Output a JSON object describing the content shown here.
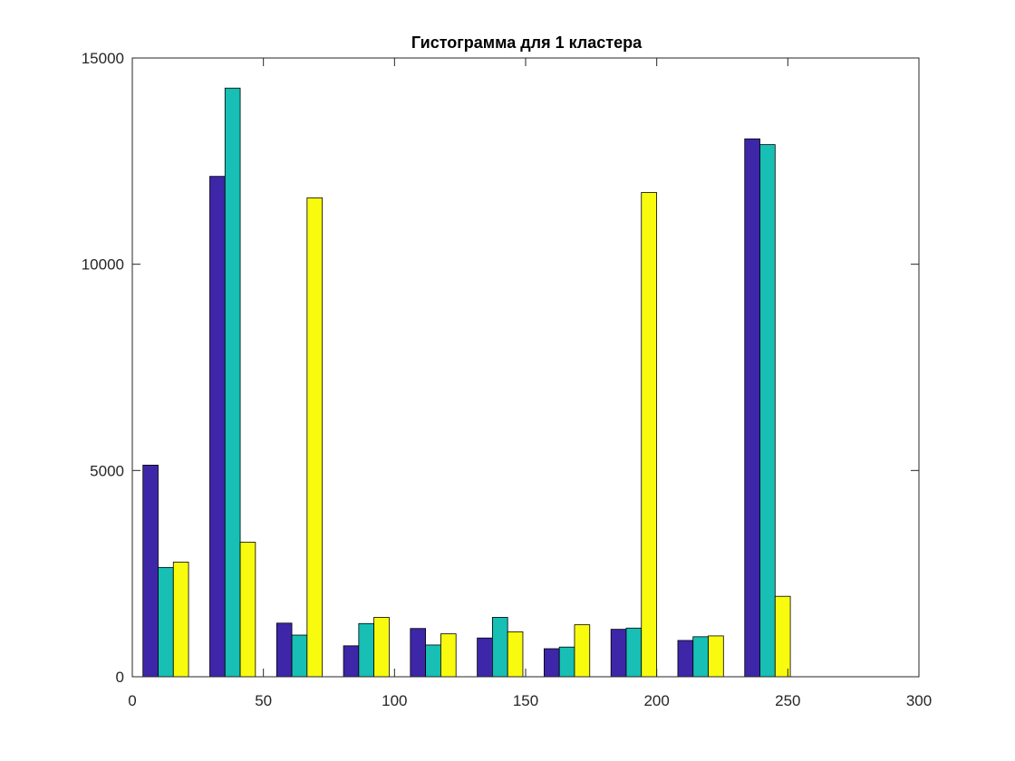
{
  "chart_data": {
    "type": "bar",
    "title": "Гистограмма для 1 кластера",
    "xlabel": "",
    "ylabel": "",
    "xlim": [
      0,
      300
    ],
    "ylim": [
      0,
      15000
    ],
    "x_ticks": [
      0,
      50,
      100,
      150,
      200,
      250,
      300
    ],
    "y_ticks": [
      0,
      5000,
      10000,
      15000
    ],
    "x_tick_labels": [
      "0",
      "50",
      "100",
      "150",
      "200",
      "250",
      "300"
    ],
    "y_tick_labels": [
      "0",
      "5000",
      "10000",
      "15000"
    ],
    "grid": false,
    "box": true,
    "group_width": 17.4,
    "x": [
      12.75,
      38.25,
      63.75,
      89.25,
      114.75,
      140.25,
      165.75,
      191.25,
      216.75,
      242.25
    ],
    "series": [
      {
        "color": "#3e26a8",
        "values": [
          5130,
          12130,
          1300,
          750,
          1170,
          940,
          680,
          1150,
          880,
          13040
        ]
      },
      {
        "color": "#17bfb4",
        "values": [
          2650,
          14270,
          1010,
          1290,
          770,
          1440,
          720,
          1180,
          970,
          12900
        ]
      },
      {
        "color": "#f9fb0e",
        "values": [
          2780,
          3260,
          11610,
          1440,
          1040,
          1090,
          1260,
          11740,
          990,
          1950
        ]
      }
    ]
  }
}
